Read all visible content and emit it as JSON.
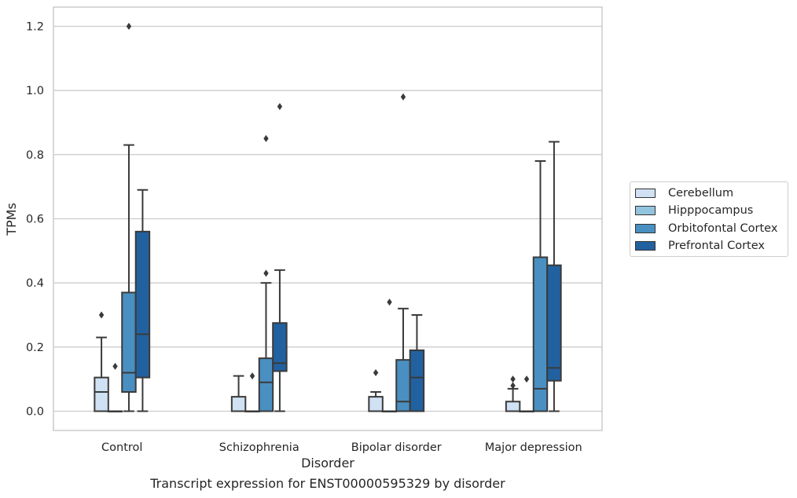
{
  "chart_data": {
    "type": "box",
    "title": "",
    "xlabel": "Disorder",
    "ylabel": "TPMs",
    "ylim": [
      -0.06,
      1.26
    ],
    "yticks": [
      0.0,
      0.2,
      0.4,
      0.6,
      0.8,
      1.0,
      1.2
    ],
    "ytick_labels": [
      "0.0",
      "0.2",
      "0.4",
      "0.6",
      "0.8",
      "1.0",
      "1.2"
    ],
    "categories": [
      "Control",
      "Schizophrenia",
      "Bipolar disorder",
      "Major depression"
    ],
    "grid": "horizontal",
    "legend_position": "right",
    "series": [
      {
        "name": "Cerebellum",
        "color": "#cfe1f2",
        "boxes": [
          {
            "whislo": 0.0,
            "q1": 0.0,
            "med": 0.06,
            "q3": 0.105,
            "whishi": 0.23,
            "fliers": [
              0.3
            ]
          },
          {
            "whislo": 0.0,
            "q1": 0.0,
            "med": 0.0,
            "q3": 0.045,
            "whishi": 0.11,
            "fliers": []
          },
          {
            "whislo": 0.0,
            "q1": 0.0,
            "med": 0.0,
            "q3": 0.045,
            "whishi": 0.06,
            "fliers": [
              0.12
            ]
          },
          {
            "whislo": 0.0,
            "q1": 0.0,
            "med": 0.0,
            "q3": 0.03,
            "whishi": 0.07,
            "fliers": [
              0.08,
              0.1
            ]
          }
        ]
      },
      {
        "name": "Hipppocampus",
        "color": "#93c4de",
        "boxes": [
          {
            "whislo": 0.0,
            "q1": 0.0,
            "med": 0.0,
            "q3": 0.0,
            "whishi": 0.0,
            "fliers": [
              0.14
            ]
          },
          {
            "whislo": 0.0,
            "q1": 0.0,
            "med": 0.0,
            "q3": 0.0,
            "whishi": 0.0,
            "fliers": [
              0.11
            ]
          },
          {
            "whislo": 0.0,
            "q1": 0.0,
            "med": 0.0,
            "q3": 0.0,
            "whishi": 0.0,
            "fliers": [
              0.34
            ]
          },
          {
            "whislo": 0.0,
            "q1": 0.0,
            "med": 0.0,
            "q3": 0.0,
            "whishi": 0.0,
            "fliers": [
              0.1
            ]
          }
        ]
      },
      {
        "name": "Orbitofontal Cortex",
        "color": "#4a8fc1",
        "boxes": [
          {
            "whislo": 0.0,
            "q1": 0.06,
            "med": 0.12,
            "q3": 0.37,
            "whishi": 0.83,
            "fliers": [
              1.2
            ]
          },
          {
            "whislo": 0.0,
            "q1": 0.0,
            "med": 0.09,
            "q3": 0.165,
            "whishi": 0.4,
            "fliers": [
              0.43,
              0.85
            ]
          },
          {
            "whislo": 0.0,
            "q1": 0.0,
            "med": 0.03,
            "q3": 0.16,
            "whishi": 0.32,
            "fliers": [
              0.98
            ]
          },
          {
            "whislo": 0.0,
            "q1": 0.0,
            "med": 0.07,
            "q3": 0.48,
            "whishi": 0.78,
            "fliers": []
          }
        ]
      },
      {
        "name": "Prefrontal Cortex",
        "color": "#2261a0",
        "boxes": [
          {
            "whislo": 0.0,
            "q1": 0.105,
            "med": 0.24,
            "q3": 0.56,
            "whishi": 0.69,
            "fliers": []
          },
          {
            "whislo": 0.0,
            "q1": 0.125,
            "med": 0.15,
            "q3": 0.275,
            "whishi": 0.44,
            "fliers": [
              0.95
            ]
          },
          {
            "whislo": 0.0,
            "q1": 0.0,
            "med": 0.105,
            "q3": 0.19,
            "whishi": 0.3,
            "fliers": []
          },
          {
            "whislo": 0.0,
            "q1": 0.095,
            "med": 0.135,
            "q3": 0.455,
            "whishi": 0.84,
            "fliers": []
          }
        ]
      }
    ]
  },
  "caption": "Transcript expression for ENST00000595329 by disorder"
}
